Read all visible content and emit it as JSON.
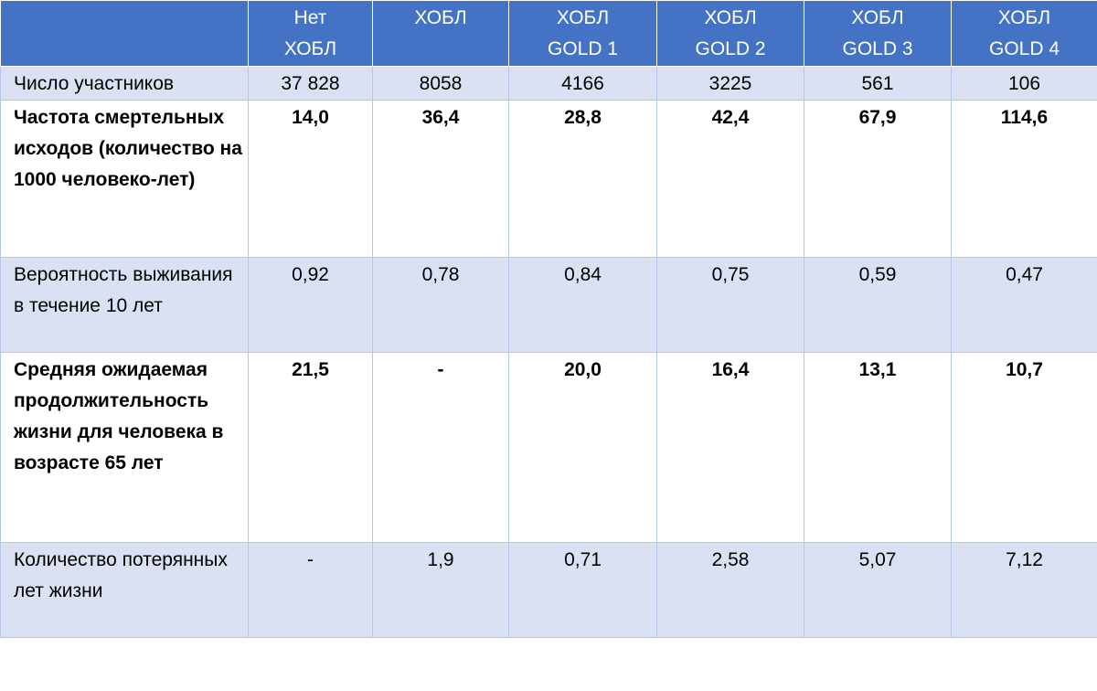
{
  "table": {
    "header": [
      "Нет ХОБЛ",
      "ХОБЛ",
      "ХОБЛ GOLD 1",
      "ХОБЛ GOLD 2",
      "ХОБЛ GOLD 3",
      "ХОБЛ GOLD 4"
    ],
    "rows": [
      [
        "Число участников",
        "37 828",
        "8058",
        "4166",
        "3225",
        "561",
        "106"
      ],
      [
        "Частота смертельных исходов (количество на 1000 человеко-лет)",
        "14,0",
        "36,4",
        "28,8",
        "42,4",
        "67,9",
        "114,6"
      ],
      [
        "Вероятность выживания в течение 10 лет",
        "0,92",
        "0,78",
        "0,84",
        "0,75",
        "0,59",
        "0,47"
      ],
      [
        "Средняя ожидаемая продолжительность жизни для человека в возрасте 65 лет",
        "21,5",
        "-",
        "20,0",
        "16,4",
        "13,1",
        "10,7"
      ],
      [
        "Количество потерянных лет жизни",
        "-",
        "1,9",
        "0,71",
        "2,58",
        "5,07",
        "7,12"
      ]
    ]
  }
}
